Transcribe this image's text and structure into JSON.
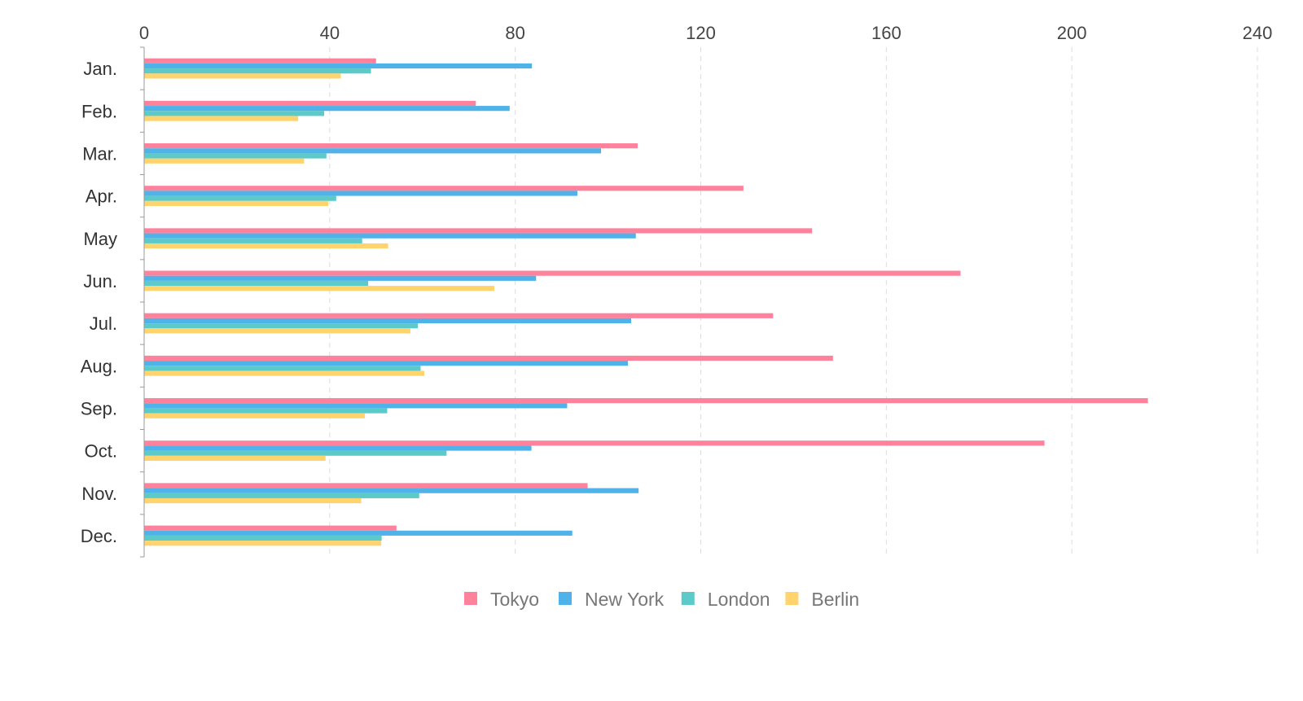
{
  "chart_data": {
    "type": "bar",
    "orientation": "horizontal",
    "title": "",
    "xlabel": "",
    "ylabel": "",
    "xlim": [
      0,
      240
    ],
    "x_ticks": [
      "0",
      "40",
      "80",
      "120",
      "160",
      "200",
      "240"
    ],
    "categories": [
      "Jan.",
      "Feb.",
      "Mar.",
      "Apr.",
      "May",
      "Jun.",
      "Jul.",
      "Aug.",
      "Sep.",
      "Oct.",
      "Nov.",
      "Dec."
    ],
    "series": [
      {
        "name": "Tokyo",
        "color": "#ff829d",
        "values": [
          50,
          71.5,
          106.4,
          129.2,
          144,
          176,
          135.6,
          148.5,
          216.4,
          194.1,
          95.6,
          54.4
        ]
      },
      {
        "name": "New York",
        "color": "#4fb3ea",
        "values": [
          83.6,
          78.8,
          98.5,
          93.4,
          106,
          84.5,
          105,
          104.3,
          91.2,
          83.5,
          106.6,
          92.3
        ]
      },
      {
        "name": "London",
        "color": "#5ccac8",
        "values": [
          48.9,
          38.8,
          39.3,
          41.4,
          47,
          48.3,
          59,
          59.6,
          52.4,
          65.2,
          59.3,
          51.2
        ]
      },
      {
        "name": "Berlin",
        "color": "#ffd36e",
        "values": [
          42.4,
          33.2,
          34.5,
          39.7,
          52.6,
          75.5,
          57.4,
          60.4,
          47.6,
          39.1,
          46.8,
          51.1
        ]
      }
    ],
    "grid": "vertical dashed",
    "legend": "bottom-center"
  }
}
